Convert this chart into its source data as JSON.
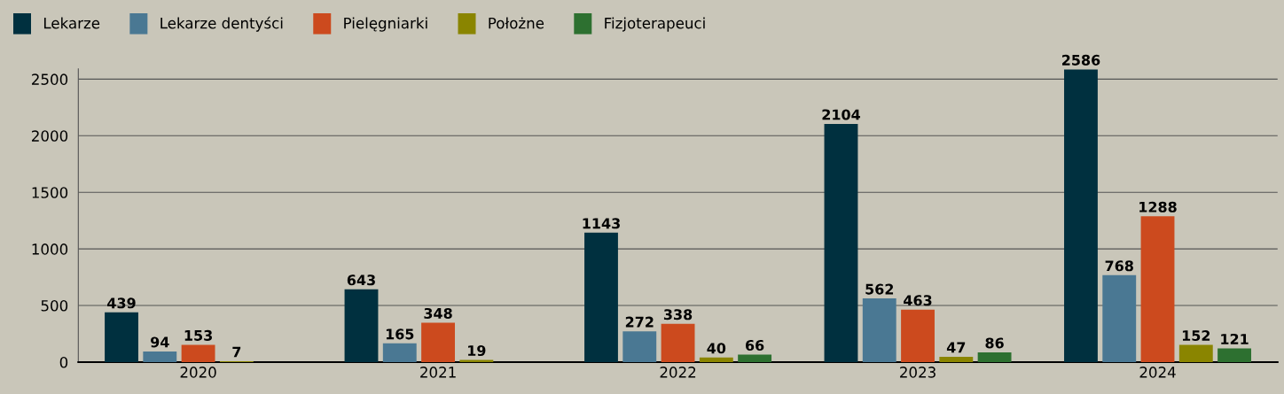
{
  "chart_data": {
    "type": "bar",
    "categories": [
      "2020",
      "2021",
      "2022",
      "2023",
      "2024"
    ],
    "series": [
      {
        "name": "Lekarze",
        "color": "#00303f",
        "values": [
          439,
          643,
          1143,
          2104,
          2586
        ]
      },
      {
        "name": "Lekarze dentyści",
        "color": "#4a7893",
        "values": [
          94,
          165,
          272,
          562,
          768
        ]
      },
      {
        "name": "Pielęgniarki",
        "color": "#cc4a1e",
        "values": [
          153,
          348,
          338,
          463,
          1288
        ]
      },
      {
        "name": "Położne",
        "color": "#8a8500",
        "values": [
          7,
          19,
          40,
          47,
          152
        ]
      },
      {
        "name": "Fizjoterapeuci",
        "color": "#2d7030",
        "values": [
          null,
          null,
          66,
          86,
          121
        ]
      }
    ],
    "ylim": [
      0,
      2590
    ],
    "yticks": [
      0,
      500,
      1000,
      1500,
      2000,
      2500
    ],
    "grid": "y",
    "legend": "top left",
    "data_labels": true
  }
}
